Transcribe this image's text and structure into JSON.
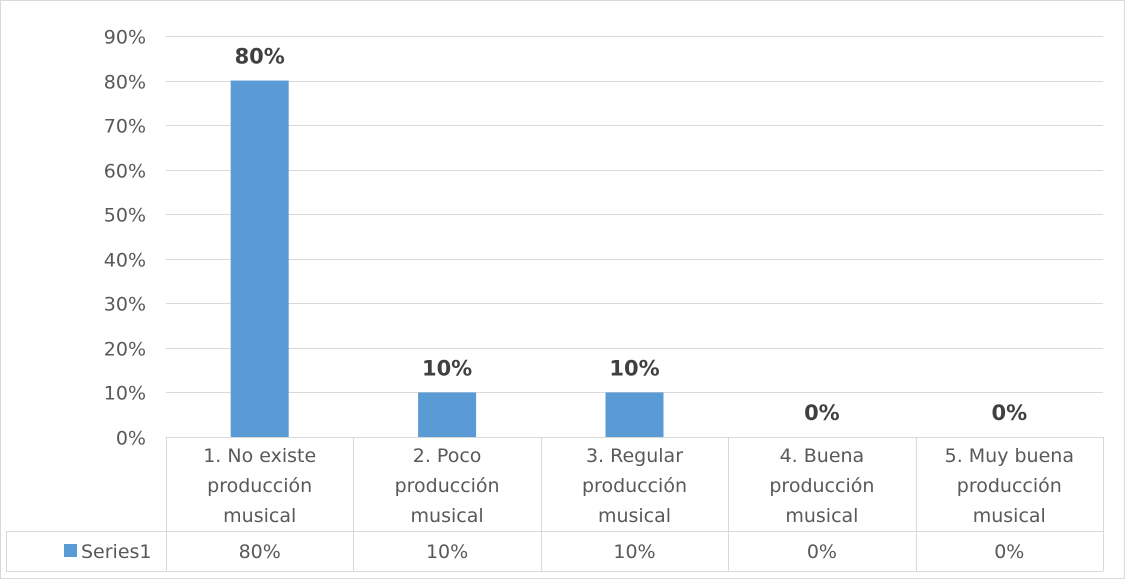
{
  "chart_data": {
    "type": "bar",
    "categories": [
      [
        "1. No existe",
        "producción",
        "musical"
      ],
      [
        "2. Poco",
        "producción",
        "musical"
      ],
      [
        "3. Regular",
        "producción",
        "musical"
      ],
      [
        "4. Buena",
        "producción",
        "musical"
      ],
      [
        "5. Muy buena",
        "producción",
        "musical"
      ]
    ],
    "series": [
      {
        "name": "Series1",
        "values": [
          80,
          10,
          10,
          0,
          0
        ],
        "data_labels": [
          "80%",
          "10%",
          "10%",
          "0%",
          "0%"
        ],
        "table_values": [
          "80%",
          "10%",
          "10%",
          "0%",
          "0%"
        ],
        "color": "#5B9BD5"
      }
    ],
    "ylim": [
      0,
      90
    ],
    "yticks": [
      0,
      10,
      20,
      30,
      40,
      50,
      60,
      70,
      80,
      90
    ],
    "ytick_labels": [
      "0%",
      "10%",
      "20%",
      "30%",
      "40%",
      "50%",
      "60%",
      "70%",
      "80%",
      "90%"
    ],
    "grid": true,
    "data_table": true,
    "legend_placement": "data-table-left",
    "colors": {
      "bar": "#5B9BD5",
      "grid": "#D9D9D9",
      "text": "#595959"
    }
  }
}
